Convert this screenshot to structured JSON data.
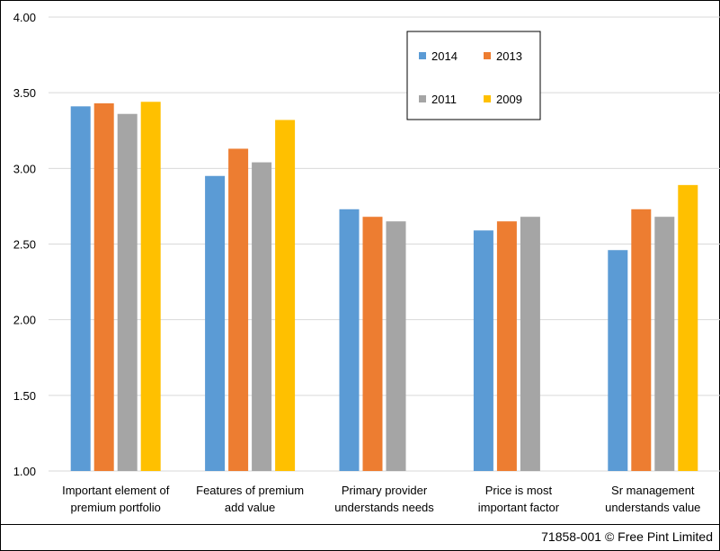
{
  "chart_data": {
    "type": "bar",
    "categories": [
      [
        "Important element of",
        "premium portfolio"
      ],
      [
        "Features of premium",
        "add value"
      ],
      [
        "Primary provider",
        "understands needs"
      ],
      [
        "Price is most",
        "important factor"
      ],
      [
        "Sr management",
        "understands value"
      ]
    ],
    "series": [
      {
        "name": "2014",
        "color": "#5b9bd5",
        "values": [
          3.41,
          2.95,
          2.73,
          2.59,
          2.46
        ]
      },
      {
        "name": "2013",
        "color": "#ed7d31",
        "values": [
          3.43,
          3.13,
          2.68,
          2.65,
          2.73
        ]
      },
      {
        "name": "2011",
        "color": "#a5a5a5",
        "values": [
          3.36,
          3.04,
          2.65,
          2.68,
          2.68
        ]
      },
      {
        "name": "2009",
        "color": "#ffc000",
        "values": [
          3.44,
          3.32,
          null,
          null,
          2.89
        ]
      }
    ],
    "ylim": [
      1.0,
      4.0
    ],
    "yticks": [
      "1.00",
      "1.50",
      "2.00",
      "2.50",
      "3.00",
      "3.50",
      "4.00"
    ],
    "grid": true,
    "legend_position": "top-right"
  },
  "footer": {
    "text": "71858-001 © Free Pint Limited"
  }
}
